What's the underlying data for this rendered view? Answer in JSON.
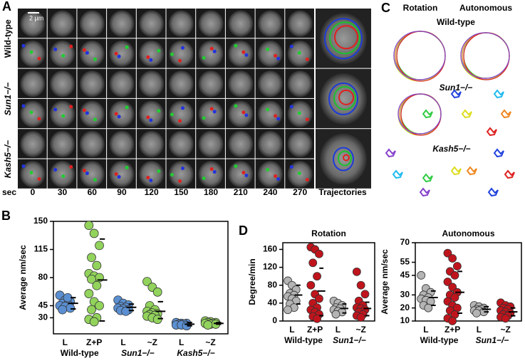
{
  "panel_a": {
    "label": "A",
    "rows": [
      "Wild-type",
      "Sun1−/−",
      "Kash5−/−"
    ],
    "scale_bar": "2 µm",
    "time_unit": "sec",
    "times": [
      "0",
      "30",
      "60",
      "90",
      "120",
      "150",
      "180",
      "210",
      "240",
      "270"
    ],
    "trajectories": "Trajectories"
  },
  "panel_c": {
    "label": "C",
    "columns": [
      "Rotation",
      "Autonomous"
    ],
    "rows": [
      "Wild-type",
      "Sun1−/−",
      "Kash5−/−"
    ]
  },
  "chart_data": [
    {
      "type": "strip",
      "panel": "B",
      "ylabel": "Average nm/sec",
      "ylim": [
        10,
        150
      ],
      "yticks": [
        30,
        45,
        80,
        115,
        150
      ],
      "categories": [
        "L",
        "Z+P",
        "L",
        "~Z",
        "L",
        "~Z"
      ],
      "groups": [
        "Wild-type",
        "Sun1−/−",
        "Kash5−/−"
      ],
      "colors": [
        "#5b8fd1",
        "#92d35c",
        "#5b8fd1",
        "#92d35c",
        "#5b8fd1",
        "#92d35c"
      ],
      "points": [
        [
          58,
          52,
          50,
          48,
          47,
          45,
          44,
          42,
          40,
          55
        ],
        [
          145,
          135,
          120,
          105,
          95,
          85,
          82,
          80,
          78,
          70,
          60,
          50,
          45,
          40,
          30,
          28,
          25
        ],
        [
          52,
          48,
          46,
          44,
          43,
          42,
          41,
          40,
          39,
          38
        ],
        [
          75,
          68,
          62,
          45,
          40,
          38,
          36,
          35,
          34,
          33,
          32,
          30,
          28
        ],
        [
          24,
          23,
          23,
          22,
          22,
          21,
          21,
          20
        ],
        [
          26,
          25,
          24,
          24,
          23,
          23,
          22,
          22,
          21
        ]
      ],
      "means": [
        48,
        77,
        43,
        38,
        22,
        23
      ],
      "upper": [
        55,
        128,
        47,
        50,
        24,
        24
      ],
      "lower": [
        41,
        26,
        39,
        29,
        20,
        22
      ]
    },
    {
      "type": "strip",
      "panel": "D",
      "title": "Rotation",
      "ylabel": "Degree/min",
      "ylim": [
        0,
        175
      ],
      "yticks": [
        0,
        40,
        80,
        120,
        160
      ],
      "categories": [
        "L",
        "Z+P",
        "L",
        "~Z"
      ],
      "groups": [
        "Wild-type",
        "Sun1−/−"
      ],
      "colors": [
        "#b4b4b4",
        "#c0141c",
        "#b4b4b4",
        "#c0141c"
      ],
      "points": [
        [
          90,
          80,
          70,
          62,
          58,
          55,
          50,
          45,
          38,
          30,
          25
        ],
        [
          165,
          160,
          150,
          130,
          100,
          80,
          60,
          50,
          40,
          30,
          25,
          20,
          15,
          10,
          5
        ],
        [
          45,
          40,
          35,
          30,
          28,
          25,
          22,
          20,
          15
        ],
        [
          110,
          80,
          60,
          45,
          35,
          30,
          28,
          25,
          20,
          15,
          12,
          8
        ]
      ],
      "means": [
        58,
        67,
        28,
        28
      ],
      "upper": [
        80,
        118,
        38,
        42
      ],
      "lower": [
        38,
        12,
        18,
        12
      ]
    },
    {
      "type": "strip",
      "title": "Autonomous",
      "ylabel": "Average nm/sec",
      "ylim": [
        10,
        70
      ],
      "yticks": [
        10,
        20,
        30,
        45,
        55,
        70
      ],
      "categories": [
        "L",
        "Z+P",
        "L",
        "~Z"
      ],
      "groups": [
        "Wild-type",
        "Sun1−/−"
      ],
      "colors": [
        "#b4b4b4",
        "#c0141c",
        "#b4b4b4",
        "#c0141c"
      ],
      "points": [
        [
          45,
          35,
          32,
          30,
          28,
          27,
          26,
          25,
          22,
          20
        ],
        [
          62,
          58,
          52,
          48,
          45,
          40,
          36,
          32,
          30,
          28,
          25,
          22,
          20,
          18,
          15,
          12,
          10
        ],
        [
          22,
          21,
          20,
          19,
          19,
          18,
          18,
          17,
          16
        ],
        [
          24,
          22,
          21,
          20,
          19,
          18,
          17,
          16,
          15,
          14,
          13,
          12
        ]
      ],
      "means": [
        28,
        32,
        19,
        17
      ],
      "upper": [
        33,
        48,
        21,
        20
      ],
      "lower": [
        22,
        16,
        17,
        14
      ]
    }
  ]
}
